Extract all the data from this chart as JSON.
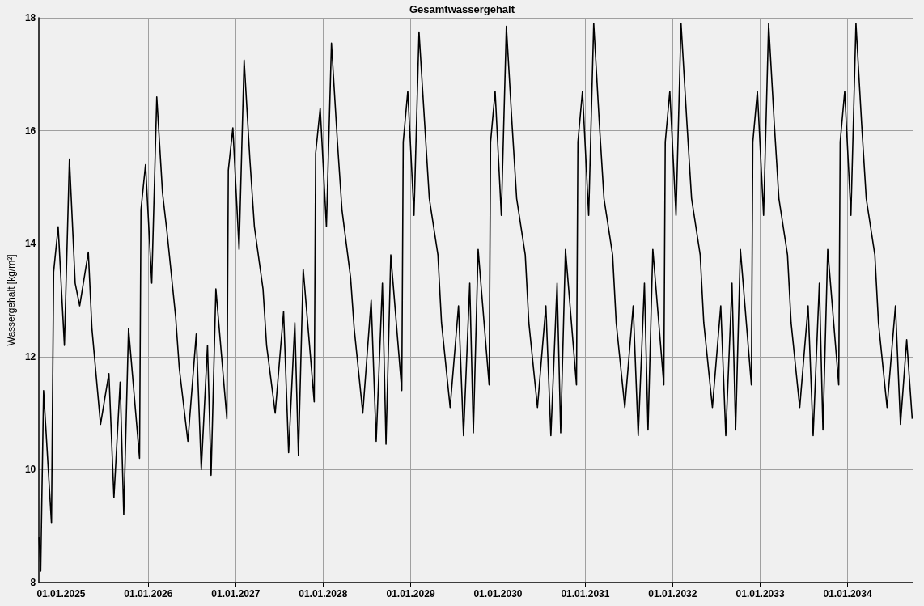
{
  "chart_data": {
    "type": "line",
    "title": "Gesamtwassergehalt",
    "ylabel": "Wassergehalt [kg/m²]",
    "xlim": [
      "2024-10-01",
      "2034-09-30"
    ],
    "xticks": [
      {
        "value": "2025-01-01",
        "label": "01.01.2025"
      },
      {
        "value": "2026-01-01",
        "label": "01.01.2026"
      },
      {
        "value": "2027-01-01",
        "label": "01.01.2027"
      },
      {
        "value": "2028-01-01",
        "label": "01.01.2028"
      },
      {
        "value": "2029-01-01",
        "label": "01.01.2029"
      },
      {
        "value": "2030-01-01",
        "label": "01.01.2030"
      },
      {
        "value": "2031-01-01",
        "label": "01.01.2031"
      },
      {
        "value": "2032-01-01",
        "label": "01.01.2032"
      },
      {
        "value": "2033-01-01",
        "label": "01.01.2033"
      },
      {
        "value": "2034-01-01",
        "label": "01.01.2034"
      }
    ],
    "ylim": [
      8,
      18
    ],
    "yticks": [
      8,
      10,
      12,
      14,
      16,
      18
    ],
    "grid": true,
    "marker": "none",
    "line_style": "solid",
    "series": [
      {
        "color": "#000000",
        "x": [
          "2024-10-01",
          "2024-10-08",
          "2024-10-20",
          "2024-11-22",
          "2024-12-01",
          "2024-12-20",
          "2025-01-15",
          "2025-02-05",
          "2025-03-01",
          "2025-03-20",
          "2025-04-25",
          "2025-05-10",
          "2025-06-15",
          "2025-07-20",
          "2025-08-10",
          "2025-09-05",
          "2025-09-20",
          "2025-10-10",
          "2025-11-25",
          "2025-12-01",
          "2025-12-20",
          "2026-01-15",
          "2026-02-05",
          "2026-03-01",
          "2026-03-20",
          "2026-04-25",
          "2026-05-10",
          "2026-06-15",
          "2026-07-20",
          "2026-08-10",
          "2026-09-05",
          "2026-09-20",
          "2026-10-10",
          "2026-11-25",
          "2026-12-01",
          "2026-12-20",
          "2027-01-15",
          "2027-02-05",
          "2027-03-01",
          "2027-03-20",
          "2027-04-25",
          "2027-05-10",
          "2027-06-15",
          "2027-07-20",
          "2027-08-10",
          "2027-09-05",
          "2027-09-20",
          "2027-10-10",
          "2027-11-25",
          "2027-12-01",
          "2027-12-20",
          "2028-01-15",
          "2028-02-05",
          "2028-03-01",
          "2028-03-20",
          "2028-04-25",
          "2028-05-10",
          "2028-06-15",
          "2028-07-20",
          "2028-08-10",
          "2028-09-05",
          "2028-09-20",
          "2028-10-10",
          "2028-11-25",
          "2028-12-01",
          "2028-12-20",
          "2029-01-15",
          "2029-02-05",
          "2029-03-01",
          "2029-03-20",
          "2029-04-25",
          "2029-05-10",
          "2029-06-15",
          "2029-07-20",
          "2029-08-10",
          "2029-09-05",
          "2029-09-20",
          "2029-10-10",
          "2029-11-25",
          "2029-12-01",
          "2029-12-20",
          "2030-01-15",
          "2030-02-05",
          "2030-03-01",
          "2030-03-20",
          "2030-04-25",
          "2030-05-10",
          "2030-06-15",
          "2030-07-20",
          "2030-08-10",
          "2030-09-05",
          "2030-09-20",
          "2030-10-10",
          "2030-11-25",
          "2030-12-01",
          "2030-12-20",
          "2031-01-15",
          "2031-02-05",
          "2031-03-01",
          "2031-03-20",
          "2031-04-25",
          "2031-05-10",
          "2031-06-15",
          "2031-07-20",
          "2031-08-10",
          "2031-09-05",
          "2031-09-20",
          "2031-10-10",
          "2031-11-25",
          "2031-12-01",
          "2031-12-20",
          "2032-01-15",
          "2032-02-05",
          "2032-03-01",
          "2032-03-20",
          "2032-04-25",
          "2032-05-10",
          "2032-06-15",
          "2032-07-20",
          "2032-08-10",
          "2032-09-05",
          "2032-09-20",
          "2032-10-10",
          "2032-11-25",
          "2032-12-01",
          "2032-12-20",
          "2033-01-15",
          "2033-02-05",
          "2033-03-01",
          "2033-03-20",
          "2033-04-25",
          "2033-05-10",
          "2033-06-15",
          "2033-07-20",
          "2033-08-10",
          "2033-09-05",
          "2033-09-20",
          "2033-10-10",
          "2033-11-25",
          "2033-12-01",
          "2033-12-20",
          "2034-01-15",
          "2034-02-05",
          "2034-03-01",
          "2034-03-20",
          "2034-04-25",
          "2034-05-10",
          "2034-06-15",
          "2034-07-20",
          "2034-08-10",
          "2034-09-05",
          "2034-09-28"
        ],
        "values": [
          8.8,
          8.2,
          11.4,
          9.05,
          13.5,
          14.3,
          12.2,
          15.5,
          13.3,
          12.9,
          13.85,
          12.5,
          10.8,
          11.7,
          9.5,
          11.55,
          9.2,
          12.5,
          10.2,
          14.6,
          15.4,
          13.3,
          16.6,
          14.9,
          14.2,
          12.7,
          11.8,
          10.5,
          12.4,
          10.0,
          12.2,
          9.9,
          13.2,
          10.9,
          15.3,
          16.05,
          13.9,
          17.25,
          15.5,
          14.3,
          13.2,
          12.2,
          11.0,
          12.8,
          10.3,
          12.6,
          10.25,
          13.55,
          11.2,
          15.6,
          16.4,
          14.3,
          17.55,
          15.8,
          14.6,
          13.4,
          12.5,
          11.0,
          13.0,
          10.5,
          13.3,
          10.45,
          13.8,
          11.4,
          15.8,
          16.7,
          14.5,
          17.75,
          16.1,
          14.8,
          13.8,
          12.6,
          11.1,
          12.9,
          10.6,
          13.3,
          10.65,
          13.9,
          11.5,
          15.8,
          16.7,
          14.5,
          17.85,
          16.1,
          14.8,
          13.8,
          12.6,
          11.1,
          12.9,
          10.6,
          13.3,
          10.65,
          13.9,
          11.5,
          15.8,
          16.7,
          14.5,
          17.9,
          16.1,
          14.8,
          13.8,
          12.6,
          11.1,
          12.9,
          10.6,
          13.3,
          10.7,
          13.9,
          11.5,
          15.8,
          16.7,
          14.5,
          17.9,
          16.1,
          14.8,
          13.8,
          12.6,
          11.1,
          12.9,
          10.6,
          13.3,
          10.7,
          13.9,
          11.5,
          15.8,
          16.7,
          14.5,
          17.9,
          16.1,
          14.8,
          13.8,
          12.6,
          11.1,
          12.9,
          10.6,
          13.3,
          10.7,
          13.9,
          11.5,
          15.8,
          16.7,
          14.5,
          17.9,
          16.1,
          14.8,
          13.8,
          12.6,
          11.1,
          12.9,
          10.8,
          12.3,
          10.9
        ]
      }
    ]
  }
}
